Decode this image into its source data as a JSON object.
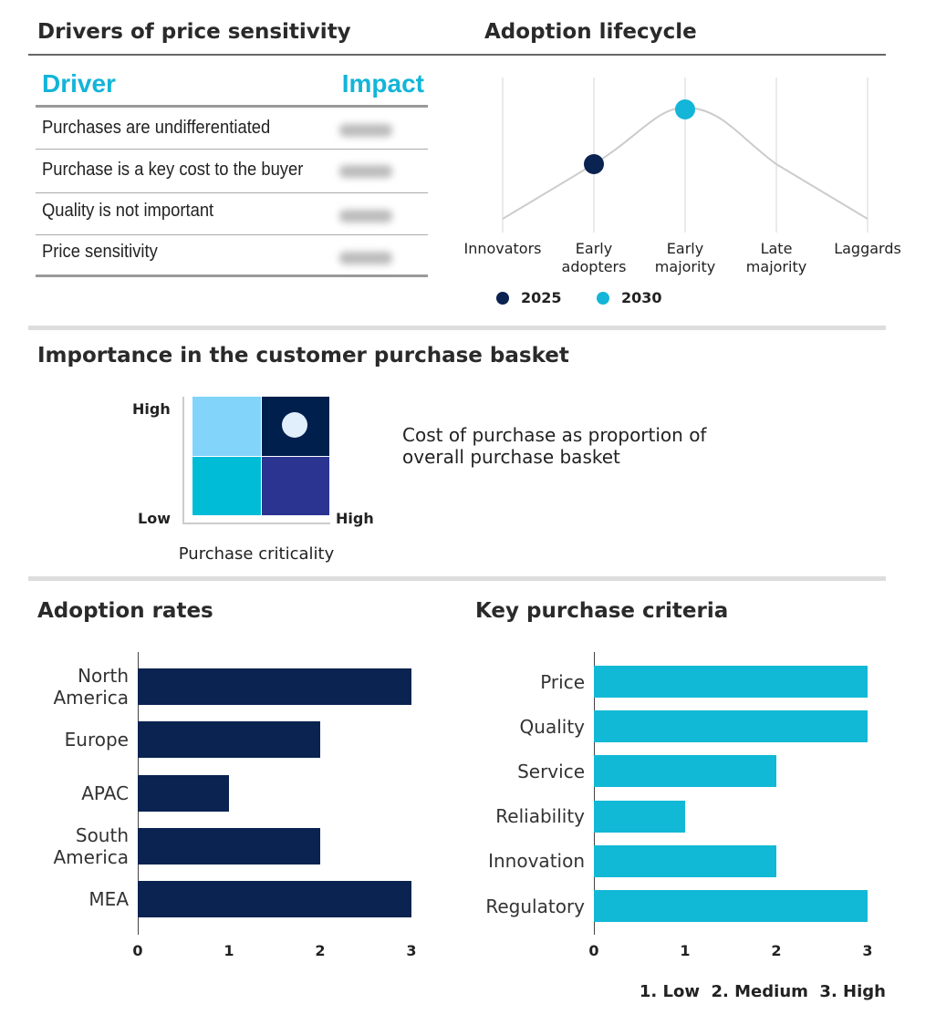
{
  "drivers": {
    "title": "Drivers of price sensitivity",
    "col_driver": "Driver",
    "col_impact": "Impact",
    "rows": [
      "Purchases are undifferentiated",
      "Purchase is a key cost to the buyer",
      "Quality is not important",
      "Price sensitivity"
    ],
    "header_color": "#13b5d8"
  },
  "lifecycle": {
    "title": "Adoption lifecycle",
    "stages": [
      [
        "Innovators",
        ""
      ],
      [
        "Early",
        "adopters"
      ],
      [
        "Early",
        "majority"
      ],
      [
        "Late",
        "majority"
      ],
      [
        "Laggards",
        ""
      ]
    ],
    "markers": [
      {
        "label": "2025",
        "stage": "Early adopters",
        "color": "#0a2350"
      },
      {
        "label": "2030",
        "stage": "Early majority",
        "color": "#13b5d8"
      }
    ]
  },
  "basket": {
    "title": "Importance in the customer purchase basket",
    "y_high": "High",
    "y_low": "Low",
    "x_high": "High",
    "y_axis_label": "Cost of purchase as proportion of overall purchase basket",
    "x_axis_label": "Purchase criticality",
    "position": "High/High",
    "colors": {
      "top_left": "#82d4fa",
      "top_right": "#001f4d",
      "bottom_left": "#00bcd6",
      "bottom_right": "#2b3490"
    }
  },
  "chart_data": [
    {
      "type": "bar",
      "orientation": "horizontal",
      "title": "Adoption rates",
      "categories": [
        "North America",
        "Europe",
        "APAC",
        "South America",
        "MEA"
      ],
      "values": [
        3,
        2,
        1,
        2,
        3
      ],
      "xlim": [
        0,
        3
      ],
      "ticks": [
        "0",
        "1",
        "2",
        "3"
      ],
      "color": "#0a2350"
    },
    {
      "type": "bar",
      "orientation": "horizontal",
      "title": "Key purchase criteria",
      "categories": [
        "Price",
        "Quality",
        "Service",
        "Reliability",
        "Innovation",
        "Regulatory"
      ],
      "values": [
        3,
        3,
        2,
        1,
        2,
        3
      ],
      "xlim": [
        0,
        3
      ],
      "ticks": [
        "0",
        "1",
        "2",
        "3"
      ],
      "color": "#12b9d6"
    }
  ],
  "legend_scale": "1. Low  2. Medium  3. High"
}
